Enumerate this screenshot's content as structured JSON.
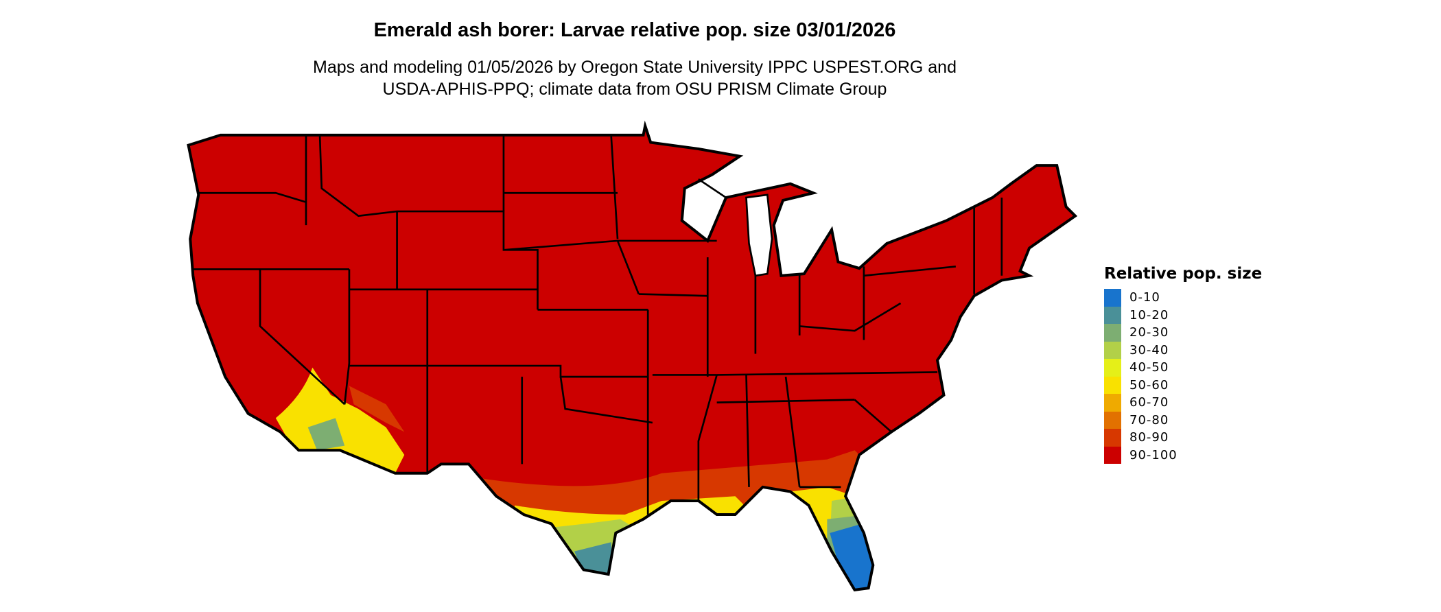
{
  "title": "Emerald ash borer: Larvae relative pop. size 03/01/2026",
  "subtitle_line1": "Maps and modeling 01/05/2026 by Oregon State University IPPC USPEST.ORG and",
  "subtitle_line2": "USDA-APHIS-PPQ; climate data from OSU PRISM Climate Group",
  "legend": {
    "title": "Relative pop. size",
    "items": [
      {
        "label": "0-10",
        "color": "#1874cd"
      },
      {
        "label": "10-20",
        "color": "#4a9098"
      },
      {
        "label": "20-30",
        "color": "#7dae72"
      },
      {
        "label": "30-40",
        "color": "#b2d048"
      },
      {
        "label": "40-50",
        "color": "#e5ef18"
      },
      {
        "label": "50-60",
        "color": "#f9e100"
      },
      {
        "label": "60-70",
        "color": "#efaa00"
      },
      {
        "label": "70-80",
        "color": "#e27100"
      },
      {
        "label": "80-90",
        "color": "#d73800"
      },
      {
        "label": "90-100",
        "color": "#cc0000"
      }
    ]
  },
  "chart_data": {
    "type": "heatmap",
    "region": "Contiguous United States",
    "dominant_class": "90-100",
    "lower_classes_regions": [
      "Florida peninsula",
      "South Texas",
      "Gulf Coast",
      "Southern Arizona",
      "Southern California"
    ]
  }
}
